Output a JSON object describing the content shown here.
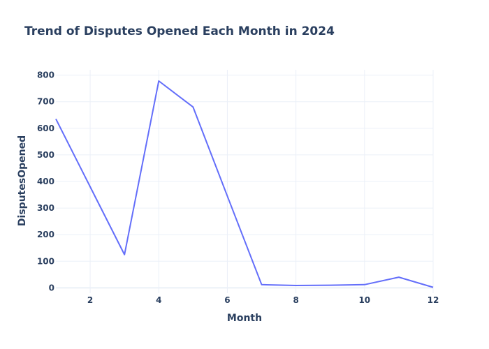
{
  "chart_data": {
    "type": "line",
    "title": "Trend of Disputes Opened Each Month in 2024",
    "xlabel": "Month",
    "ylabel": "DisputesOpened",
    "x": [
      1,
      2,
      3,
      4,
      5,
      6,
      7,
      8,
      9,
      10,
      11,
      12
    ],
    "series": [
      {
        "values": [
          635,
          380,
          125,
          778,
          680,
          345,
          12,
          9,
          10,
          12,
          40,
          2
        ],
        "color": "#636efa"
      }
    ],
    "xlim": [
      1,
      12
    ],
    "ylim": [
      -20,
      820
    ],
    "xticks": [
      2,
      4,
      6,
      8,
      10,
      12
    ],
    "yticks": [
      0,
      100,
      200,
      300,
      400,
      500,
      600,
      700,
      800
    ],
    "grid": true
  }
}
